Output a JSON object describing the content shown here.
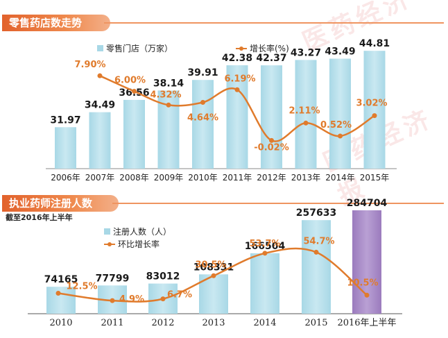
{
  "colors": {
    "bar": "#a8d8e6",
    "bar_top": "#c9e8f1",
    "bar_highlight": "#a98bc6",
    "line": "#e07b2c",
    "growth_label": "#e07b2c",
    "banner": "#e86a33"
  },
  "chart_data": [
    {
      "type": "bar",
      "title": "零售药店数走势",
      "categories": [
        "2006年",
        "2007年",
        "2008年",
        "2009年",
        "2010年",
        "2011年",
        "2012年",
        "2013年",
        "2014年",
        "2015年"
      ],
      "series": [
        {
          "name": "零售门店（万家）",
          "type": "bar",
          "values": [
            31.97,
            34.49,
            36.56,
            38.14,
            39.91,
            42.38,
            42.37,
            43.27,
            43.49,
            44.81
          ]
        },
        {
          "name": "增长率(%)",
          "type": "line",
          "values": [
            null,
            7.9,
            6.0,
            4.32,
            4.64,
            6.19,
            -0.02,
            2.11,
            0.52,
            3.02
          ]
        }
      ],
      "value_labels": [
        "31.97",
        "34.49",
        "36.56",
        "38.14",
        "39.91",
        "42.38",
        "42.37",
        "43.27",
        "43.49",
        "44.81"
      ],
      "growth_labels": [
        "",
        "7.90%",
        "6.00%",
        "4.32%",
        "4.64%",
        "6.19%",
        "-0.02%",
        "2.11%",
        "0.52%",
        "3.02%"
      ],
      "legend_position": "top"
    },
    {
      "type": "bar",
      "title": "执业药师注册人数",
      "subtitle": "截至2016年上半年",
      "categories": [
        "2010",
        "2011",
        "2012",
        "2013",
        "2014",
        "2015",
        "2016年上半年"
      ],
      "series": [
        {
          "name": "注册人数（人）",
          "type": "bar",
          "values": [
            74165,
            77799,
            83012,
            108331,
            166504,
            257633,
            284704
          ]
        },
        {
          "name": "环比增长率",
          "type": "line",
          "values": [
            12.5,
            4.9,
            6.7,
            30.5,
            53.7,
            54.7,
            10.5
          ]
        }
      ],
      "value_labels": [
        "74165",
        "77799",
        "83012",
        "108331",
        "166504",
        "257633",
        "284704"
      ],
      "growth_labels": [
        "12.5%",
        "4.9%",
        "6.7%",
        "30.5%",
        "53.7%",
        "54.7%",
        "10.5%"
      ],
      "legend_position": "top-left"
    }
  ]
}
